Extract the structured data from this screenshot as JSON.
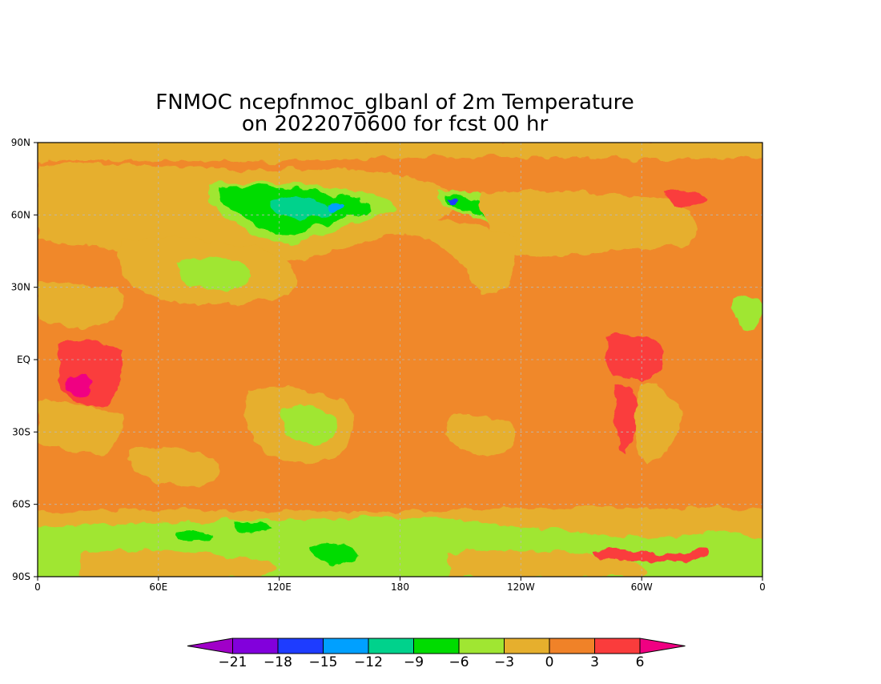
{
  "title": {
    "line1": "FNMOC ncepfnmoc_glbanl of 2m Temperature",
    "line2": "on 2022070600 for fcst 00 hr"
  },
  "map": {
    "projection": "cylindrical",
    "lon_range": [
      0,
      360
    ],
    "lat_range": [
      -90,
      90
    ],
    "background_color": "#f0882a",
    "x_ticks": [
      "0",
      "60E",
      "120E",
      "180",
      "120W",
      "60W",
      "0"
    ],
    "y_ticks": [
      "90N",
      "60N",
      "30N",
      "EQ",
      "30S",
      "60S",
      "90S"
    ],
    "grid": "dashed"
  },
  "colorbar": {
    "labels": [
      "−21",
      "−18",
      "−15",
      "−12",
      "−9",
      "−6",
      "−3",
      "0",
      "3",
      "6"
    ],
    "colors": [
      "#a000c8",
      "#8200dc",
      "#1e3cff",
      "#00a0ff",
      "#00d28c",
      "#00dc00",
      "#a0e632",
      "#e6af2d",
      "#f08228",
      "#fa3c3c",
      "#f00082"
    ]
  },
  "chart_data": {
    "type": "heatmap",
    "title": "FNMOC ncepfnmoc_glbanl of 2m Temperature on 2022070600 for fcst 00 hr",
    "xlabel": "",
    "ylabel": "",
    "xlim": [
      0,
      360
    ],
    "ylim": [
      -90,
      90
    ],
    "levels": [
      -21,
      -18,
      -15,
      -12,
      -9,
      -6,
      -3,
      0,
      3,
      6
    ]
  }
}
